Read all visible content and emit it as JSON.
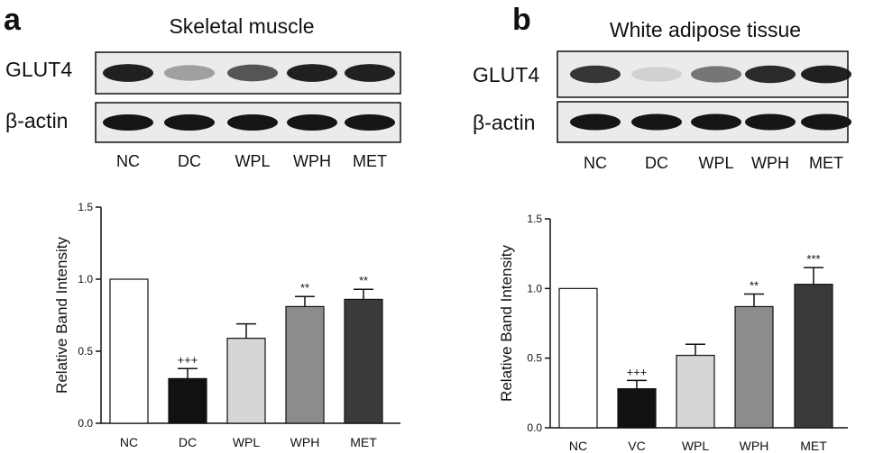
{
  "colors": {
    "NC": "#ffffff",
    "DC": "#111111",
    "VC": "#111111",
    "WPL": "#d6d6d6",
    "WPH": "#8c8c8c",
    "MET": "#3a3a3a",
    "band": "#151515",
    "blot_background": "#ebebeb"
  },
  "panels": [
    {
      "letter": "a",
      "title": "Skeletal muscle",
      "blot": {
        "rows": [
          "GLUT4",
          "β-actin"
        ],
        "lanes": [
          "NC",
          "DC",
          "WPL",
          "WPH",
          "MET"
        ],
        "glut4_band_intensity": [
          0.95,
          0.35,
          0.7,
          0.95,
          0.95
        ],
        "actin_band_intensity": [
          1,
          1,
          1,
          1,
          1
        ]
      }
    },
    {
      "letter": "b",
      "title": "White adipose tissue",
      "blot": {
        "rows": [
          "GLUT4",
          "β-actin"
        ],
        "lanes": [
          "NC",
          "DC",
          "WPL",
          "WPH",
          "MET"
        ],
        "glut4_band_intensity": [
          0.85,
          0.12,
          0.55,
          0.9,
          0.95
        ],
        "actin_band_intensity": [
          1,
          1,
          1,
          1,
          1
        ]
      }
    }
  ],
  "chart_data": [
    {
      "type": "bar",
      "title": "",
      "xlabel": "",
      "ylabel": "Relative Band Intensity",
      "ylim": [
        0,
        1.5
      ],
      "yticks": [
        "0.0",
        "0.5",
        "1.0",
        "1.5"
      ],
      "categories": [
        "NC",
        "DC",
        "WPL",
        "WPH",
        "MET"
      ],
      "values": [
        1.0,
        0.31,
        0.59,
        0.81,
        0.86
      ],
      "errors": [
        0,
        0.07,
        0.1,
        0.07,
        0.07
      ],
      "annotations": [
        "",
        "+++",
        "",
        "**",
        "**"
      ],
      "grid": false
    },
    {
      "type": "bar",
      "title": "",
      "xlabel": "",
      "ylabel": "Relative Band Intensity",
      "ylim": [
        0,
        1.5
      ],
      "yticks": [
        "0.0",
        "0.5",
        "1.0",
        "1.5"
      ],
      "categories": [
        "NC",
        "VC",
        "WPL",
        "WPH",
        "MET"
      ],
      "values": [
        1.0,
        0.28,
        0.52,
        0.87,
        1.03
      ],
      "errors": [
        0,
        0.06,
        0.08,
        0.09,
        0.12
      ],
      "annotations": [
        "",
        "+++",
        "",
        "**",
        "***"
      ],
      "grid": false
    }
  ]
}
